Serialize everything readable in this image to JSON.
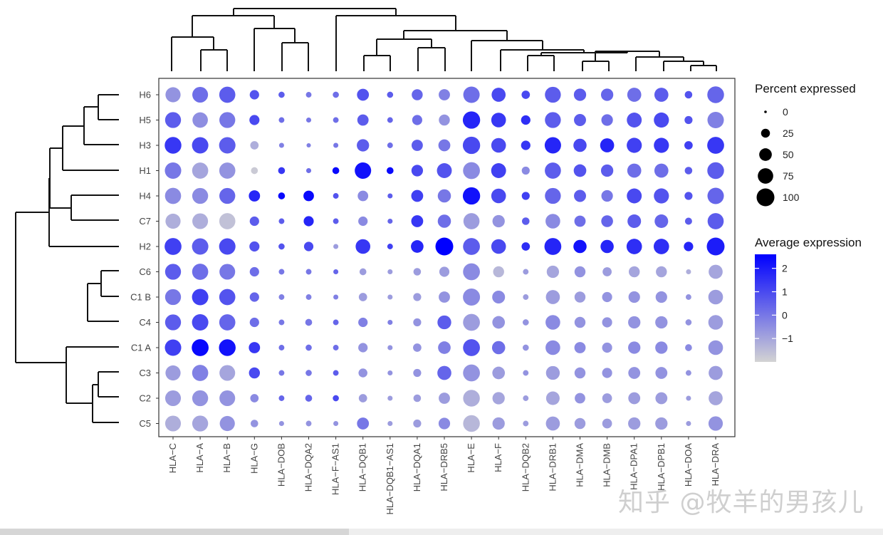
{
  "chart_data": {
    "type": "dotplot",
    "title": "",
    "xlabel": "",
    "ylabel": "",
    "genes": [
      "HLA−C",
      "HLA−A",
      "HLA−B",
      "HLA−G",
      "HLA−DOB",
      "HLA−DQA2",
      "HLA−F−AS1",
      "HLA−DQB1",
      "HLA−DQB1−AS1",
      "HLA−DQA1",
      "HLA−DRB5",
      "HLA−E",
      "HLA−F",
      "HLA−DQB2",
      "HLA−DRB1",
      "HLA−DMA",
      "HLA−DMB",
      "HLA−DPA1",
      "HLA−DPB1",
      "HLA−DOA",
      "HLA−DRA"
    ],
    "clusters": [
      "H6",
      "H5",
      "H3",
      "H1",
      "H4",
      "C7",
      "H2",
      "C6",
      "C1 B",
      "C4",
      "C1 A",
      "C3",
      "C2",
      "C5"
    ],
    "percent_expressed": [
      [
        72,
        78,
        82,
        28,
        12,
        10,
        12,
        45,
        12,
        38,
        40,
        85,
        62,
        22,
        80,
        48,
        48,
        62,
        62,
        18,
        88
      ],
      [
        80,
        75,
        80,
        32,
        10,
        8,
        10,
        40,
        10,
        32,
        38,
        95,
        68,
        28,
        80,
        46,
        42,
        70,
        72,
        20,
        85
      ],
      [
        88,
        85,
        85,
        22,
        8,
        6,
        8,
        48,
        10,
        40,
        45,
        95,
        68,
        28,
        85,
        55,
        62,
        72,
        72,
        22,
        90
      ],
      [
        85,
        82,
        82,
        15,
        15,
        8,
        15,
        85,
        15,
        42,
        70,
        90,
        70,
        20,
        82,
        50,
        48,
        62,
        62,
        18,
        88
      ],
      [
        82,
        80,
        80,
        40,
        15,
        35,
        10,
        35,
        8,
        45,
        55,
        95,
        68,
        20,
        80,
        46,
        42,
        70,
        72,
        20,
        85
      ],
      [
        72,
        78,
        82,
        28,
        10,
        32,
        10,
        28,
        8,
        45,
        55,
        82,
        48,
        18,
        68,
        40,
        44,
        58,
        58,
        16,
        82
      ],
      [
        90,
        85,
        85,
        32,
        12,
        28,
        8,
        68,
        10,
        50,
        100,
        90,
        68,
        22,
        90,
        55,
        55,
        75,
        75,
        28,
        100
      ],
      [
        80,
        82,
        78,
        28,
        10,
        10,
        8,
        15,
        8,
        18,
        32,
        90,
        38,
        10,
        48,
        38,
        26,
        38,
        38,
        8,
        62
      ],
      [
        80,
        85,
        82,
        28,
        10,
        10,
        8,
        22,
        8,
        20,
        40,
        92,
        52,
        10,
        62,
        38,
        32,
        42,
        42,
        10,
        68
      ],
      [
        80,
        85,
        82,
        28,
        10,
        15,
        10,
        28,
        8,
        20,
        60,
        90,
        50,
        12,
        68,
        38,
        32,
        48,
        48,
        12,
        68
      ],
      [
        85,
        90,
        88,
        40,
        10,
        12,
        10,
        28,
        8,
        22,
        50,
        90,
        55,
        12,
        68,
        40,
        32,
        48,
        48,
        15,
        68
      ],
      [
        72,
        82,
        78,
        38,
        10,
        12,
        10,
        25,
        8,
        20,
        62,
        90,
        50,
        10,
        60,
        38,
        32,
        45,
        45,
        10,
        62
      ],
      [
        78,
        80,
        78,
        22,
        10,
        15,
        12,
        22,
        8,
        18,
        40,
        88,
        48,
        10,
        58,
        35,
        30,
        45,
        45,
        8,
        62
      ],
      [
        78,
        80,
        72,
        18,
        8,
        10,
        8,
        45,
        8,
        20,
        42,
        88,
        48,
        10,
        62,
        38,
        30,
        48,
        48,
        8,
        65
      ]
    ],
    "average_expression": [
      [
        -0.6,
        0.2,
        0.6,
        0.8,
        0.6,
        0.0,
        0.2,
        0.8,
        0.6,
        0.4,
        -0.2,
        0.2,
        1.0,
        1.0,
        0.6,
        0.6,
        0.4,
        0.2,
        0.6,
        0.8,
        0.4
      ],
      [
        0.6,
        -0.5,
        0.0,
        1.0,
        0.2,
        0.0,
        0.2,
        0.6,
        0.4,
        0.2,
        -0.6,
        1.8,
        1.4,
        1.6,
        0.6,
        0.6,
        0.2,
        0.8,
        1.0,
        0.8,
        -0.2
      ],
      [
        1.4,
        1.0,
        0.6,
        -1.2,
        -0.2,
        -0.2,
        0.0,
        0.6,
        0.2,
        0.6,
        0.0,
        1.0,
        1.0,
        1.4,
        1.8,
        1.0,
        1.8,
        1.2,
        1.4,
        1.2,
        1.4
      ],
      [
        0.0,
        -1.0,
        -0.6,
        -1.8,
        1.4,
        0.2,
        2.4,
        2.2,
        2.4,
        1.0,
        0.8,
        -0.4,
        1.2,
        -0.4,
        0.6,
        0.8,
        0.6,
        0.2,
        0.2,
        0.6,
        0.6
      ],
      [
        -0.4,
        -0.4,
        0.4,
        1.8,
        2.4,
        2.4,
        0.8,
        -0.4,
        0.6,
        1.2,
        0.0,
        2.2,
        1.0,
        1.2,
        0.4,
        0.6,
        0.0,
        1.0,
        0.8,
        0.8,
        0.4
      ],
      [
        -1.2,
        -1.2,
        -1.6,
        0.6,
        0.6,
        1.8,
        0.6,
        -0.4,
        0.4,
        1.4,
        0.2,
        -0.8,
        -0.6,
        0.6,
        -0.4,
        0.2,
        0.4,
        0.6,
        0.4,
        0.6,
        0.6
      ],
      [
        1.2,
        0.6,
        1.0,
        0.8,
        0.8,
        1.0,
        -0.8,
        1.4,
        1.2,
        1.8,
        2.6,
        0.6,
        1.0,
        1.6,
        1.8,
        2.2,
        1.8,
        1.6,
        1.6,
        1.8,
        2.0
      ],
      [
        0.6,
        0.2,
        0.0,
        0.2,
        0.0,
        0.0,
        0.4,
        -0.8,
        -0.8,
        -0.8,
        -0.8,
        -0.4,
        -1.4,
        -0.8,
        -1.0,
        -0.6,
        -0.8,
        -1.0,
        -1.0,
        -1.2,
        -1.0
      ],
      [
        0.0,
        1.2,
        0.8,
        0.4,
        -0.2,
        -0.2,
        -0.2,
        -0.8,
        -0.8,
        -0.8,
        -0.6,
        -0.4,
        -0.4,
        -0.8,
        -0.8,
        -0.8,
        -0.6,
        -0.6,
        -0.6,
        -0.6,
        -0.8
      ],
      [
        0.6,
        1.0,
        0.4,
        0.2,
        0.0,
        0.0,
        0.4,
        -0.2,
        -0.2,
        -0.6,
        0.6,
        -0.8,
        -0.6,
        -0.6,
        -0.4,
        -0.6,
        -0.6,
        -0.6,
        -0.6,
        -0.6,
        -0.8
      ],
      [
        1.2,
        2.4,
        2.2,
        1.4,
        0.2,
        0.2,
        0.2,
        -0.6,
        -0.6,
        -0.6,
        -0.2,
        0.8,
        0.2,
        -0.6,
        -0.4,
        -0.4,
        -0.6,
        -0.4,
        -0.4,
        -0.4,
        -0.6
      ],
      [
        -0.8,
        -0.2,
        -1.0,
        1.0,
        0.0,
        0.0,
        0.6,
        -0.6,
        -0.6,
        -0.6,
        0.4,
        -0.6,
        -0.8,
        -0.6,
        -0.8,
        -0.6,
        -0.6,
        -0.6,
        -0.6,
        -0.6,
        -0.8
      ],
      [
        -0.8,
        -0.6,
        -0.6,
        -0.4,
        0.4,
        0.4,
        1.0,
        -0.8,
        -0.8,
        -0.8,
        -0.8,
        -1.2,
        -1.0,
        -0.8,
        -1.0,
        -0.6,
        -0.8,
        -0.8,
        -0.8,
        -0.8,
        -1.0
      ],
      [
        -1.2,
        -1.0,
        -0.6,
        -0.6,
        -0.6,
        -0.6,
        -0.6,
        0.0,
        -0.8,
        -0.8,
        -0.4,
        -1.4,
        -0.8,
        -0.8,
        -0.8,
        -0.8,
        -0.8,
        -0.8,
        -0.8,
        -0.8,
        -0.6
      ]
    ],
    "size_legend": {
      "title": "Percent expressed",
      "values": [
        0,
        25,
        50,
        75,
        100
      ]
    },
    "color_legend": {
      "title": "Average expression",
      "ticks": [
        2,
        1,
        0,
        -1
      ],
      "tick_labels": [
        "2",
        "1",
        "0",
        "−1"
      ],
      "range": [
        -2,
        2.6
      ],
      "low_color": "#d3d3d3",
      "high_color": "#0000ff"
    },
    "grid": false,
    "legend_position": "right"
  },
  "watermark_text": "知乎 @牧羊的男孩儿"
}
